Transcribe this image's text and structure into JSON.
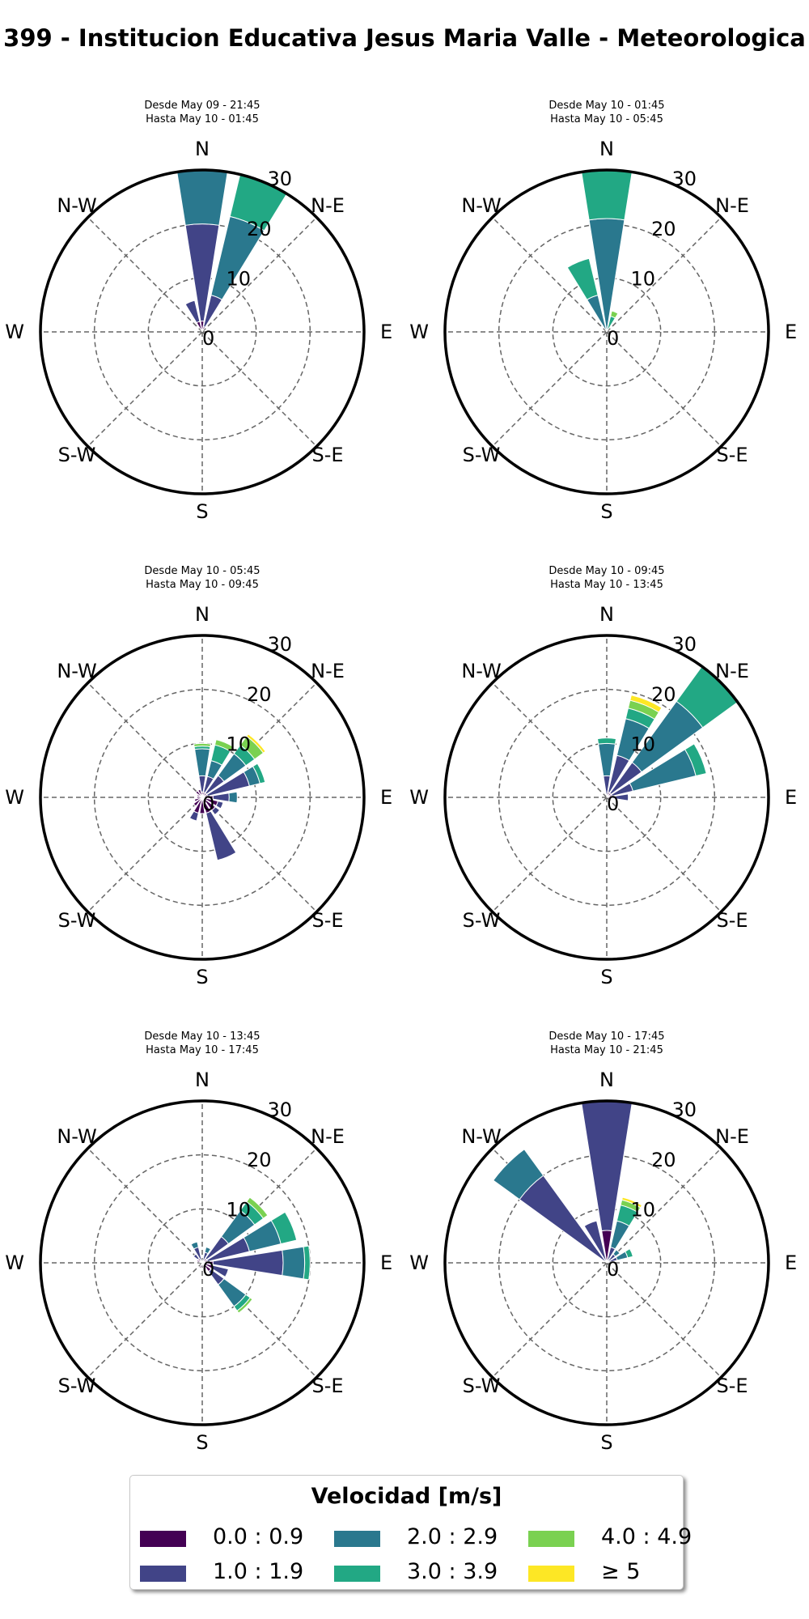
{
  "title": "399 - Institucion Educativa Jesus Maria Valle - Meteorologica",
  "directions": [
    "N",
    "N-E",
    "E",
    "S-E",
    "S",
    "S-W",
    "W",
    "N-W"
  ],
  "radial_ticks": [
    "0",
    "10",
    "20",
    "30"
  ],
  "legend": {
    "title": "Velocidad [m/s]",
    "items": [
      {
        "label": "0.0 : 0.9",
        "color": "#440154"
      },
      {
        "label": "1.0 : 1.9",
        "color": "#414487"
      },
      {
        "label": "2.0 : 2.9",
        "color": "#2a788e"
      },
      {
        "label": "3.0 : 3.9",
        "color": "#22a884"
      },
      {
        "label": "4.0 : 4.9",
        "color": "#7ad151"
      },
      {
        "label": "≥ 5",
        "color": "#fde725"
      }
    ]
  },
  "chart_data": [
    {
      "type": "windrose",
      "subtitle_line1": "Desde May 09 - 21:45",
      "subtitle_line2": "Hasta May 10 - 01:45",
      "rlim": [
        0,
        30
      ],
      "series": [
        {
          "direction_deg": 0,
          "segments": [
            2,
            20,
            30,
            0,
            0,
            0
          ]
        },
        {
          "direction_deg": 22.5,
          "segments": [
            1,
            7,
            22,
            30,
            0,
            0
          ]
        },
        {
          "direction_deg": 337.5,
          "segments": [
            2,
            6,
            0,
            0,
            0,
            0
          ]
        }
      ]
    },
    {
      "type": "windrose",
      "subtitle_line1": "Desde May 10 - 01:45",
      "subtitle_line2": "Hasta May 10 - 05:45",
      "rlim": [
        0,
        30
      ],
      "series": [
        {
          "direction_deg": 0,
          "segments": [
            0,
            0,
            21,
            30,
            0,
            0
          ]
        },
        {
          "direction_deg": 22.5,
          "segments": [
            0,
            0,
            0,
            3,
            4,
            0
          ]
        },
        {
          "direction_deg": 337.5,
          "segments": [
            0,
            0,
            7,
            14,
            0,
            0
          ]
        }
      ]
    },
    {
      "type": "windrose",
      "subtitle_line1": "Desde May 10 - 05:45",
      "subtitle_line2": "Hasta May 10 - 09:45",
      "rlim": [
        0,
        30
      ],
      "series": [
        {
          "direction_deg": 0,
          "segments": [
            1,
            4,
            9,
            9.5,
            10,
            0
          ]
        },
        {
          "direction_deg": 22.5,
          "segments": [
            1,
            4,
            7,
            10,
            11,
            0
          ]
        },
        {
          "direction_deg": 45,
          "segments": [
            1,
            5,
            10,
            12,
            14,
            14.5
          ]
        },
        {
          "direction_deg": 67.5,
          "segments": [
            1,
            9,
            11,
            12,
            0,
            0
          ]
        },
        {
          "direction_deg": 90,
          "segments": [
            2,
            5,
            6.5,
            0,
            0,
            0
          ]
        },
        {
          "direction_deg": 112.5,
          "segments": [
            3,
            4,
            0,
            0,
            0,
            0
          ]
        },
        {
          "direction_deg": 135,
          "segments": [
            3,
            4,
            0,
            0,
            0,
            0
          ]
        },
        {
          "direction_deg": 157.5,
          "segments": [
            3,
            12,
            0,
            0,
            0,
            0
          ]
        },
        {
          "direction_deg": 180,
          "segments": [
            3,
            0,
            0,
            0,
            0,
            0
          ]
        },
        {
          "direction_deg": 202.5,
          "segments": [
            3,
            4.5,
            0,
            0,
            0,
            0
          ]
        },
        {
          "direction_deg": 225,
          "segments": [
            2,
            0,
            0,
            0,
            0,
            0
          ]
        },
        {
          "direction_deg": 247.5,
          "segments": [
            1.5,
            0,
            0,
            0,
            0,
            0
          ]
        },
        {
          "direction_deg": 270,
          "segments": [
            1,
            0,
            0,
            0,
            0,
            0
          ]
        },
        {
          "direction_deg": 292.5,
          "segments": [
            1,
            0,
            0,
            0,
            0,
            0
          ]
        },
        {
          "direction_deg": 315,
          "segments": [
            1.5,
            0,
            0,
            0,
            0,
            0
          ]
        },
        {
          "direction_deg": 337.5,
          "segments": [
            1.5,
            0,
            0,
            0,
            0,
            0
          ]
        }
      ]
    },
    {
      "type": "windrose",
      "subtitle_line1": "Desde May 10 - 09:45",
      "subtitle_line2": "Hasta May 10 - 13:45",
      "rlim": [
        0,
        30
      ],
      "series": [
        {
          "direction_deg": 0,
          "segments": [
            0,
            4,
            10,
            11,
            0,
            0
          ]
        },
        {
          "direction_deg": 22.5,
          "segments": [
            1,
            8,
            15,
            17,
            18.5,
            19.5
          ]
        },
        {
          "direction_deg": 45,
          "segments": [
            1,
            8,
            22,
            30,
            0,
            0
          ]
        },
        {
          "direction_deg": 67.5,
          "segments": [
            1,
            5,
            17,
            19,
            0,
            0
          ]
        },
        {
          "direction_deg": 90,
          "segments": [
            1,
            4,
            0,
            0,
            0,
            0
          ]
        }
      ]
    },
    {
      "type": "windrose",
      "subtitle_line1": "Desde May 10 - 13:45",
      "subtitle_line2": "Hasta May 10 - 17:45",
      "rlim": [
        0,
        30
      ],
      "series": [
        {
          "direction_deg": 0,
          "segments": [
            0,
            0,
            0,
            0,
            0,
            0
          ]
        },
        {
          "direction_deg": 22.5,
          "segments": [
            0,
            2,
            3,
            0,
            0,
            0
          ]
        },
        {
          "direction_deg": 45,
          "segments": [
            1,
            6,
            12,
            14,
            15,
            0
          ]
        },
        {
          "direction_deg": 67.5,
          "segments": [
            1,
            9,
            15,
            18,
            0,
            0
          ]
        },
        {
          "direction_deg": 90,
          "segments": [
            2,
            15,
            19,
            20,
            0,
            0
          ]
        },
        {
          "direction_deg": 112.5,
          "segments": [
            2,
            5,
            0,
            0,
            0,
            0
          ]
        },
        {
          "direction_deg": 135,
          "segments": [
            2,
            5,
            10,
            11,
            11.5,
            0
          ]
        },
        {
          "direction_deg": 157.5,
          "segments": [
            1,
            0,
            0,
            0,
            0,
            0
          ]
        },
        {
          "direction_deg": 180,
          "segments": [
            0,
            0,
            0,
            0,
            0,
            0
          ]
        },
        {
          "direction_deg": 202.5,
          "segments": [
            1,
            0,
            0,
            0,
            0,
            0
          ]
        },
        {
          "direction_deg": 292.5,
          "segments": [
            1,
            0,
            0,
            0,
            0,
            0
          ]
        },
        {
          "direction_deg": 315,
          "segments": [
            1,
            2,
            0,
            0,
            0,
            0
          ]
        },
        {
          "direction_deg": 337.5,
          "segments": [
            0,
            3,
            4,
            0,
            0,
            0
          ]
        }
      ]
    },
    {
      "type": "windrose",
      "subtitle_line1": "Desde May 10 - 17:45",
      "subtitle_line2": "Hasta May 10 - 21:45",
      "rlim": [
        0,
        30
      ],
      "series": [
        {
          "direction_deg": 0,
          "segments": [
            6,
            30,
            0,
            0,
            0,
            0
          ]
        },
        {
          "direction_deg": 22.5,
          "segments": [
            0,
            3,
            8,
            11,
            12,
            12.5
          ]
        },
        {
          "direction_deg": 45,
          "segments": [
            0,
            2,
            3,
            0,
            0,
            0
          ]
        },
        {
          "direction_deg": 67.5,
          "segments": [
            0,
            2,
            4,
            5,
            0,
            0
          ]
        },
        {
          "direction_deg": 90,
          "segments": [
            0,
            0,
            0,
            0,
            0,
            0
          ]
        },
        {
          "direction_deg": 337.5,
          "segments": [
            0,
            8,
            0,
            0,
            0,
            0
          ]
        },
        {
          "direction_deg": 315,
          "segments": [
            0,
            20,
            26,
            0,
            0,
            0
          ]
        }
      ]
    }
  ]
}
